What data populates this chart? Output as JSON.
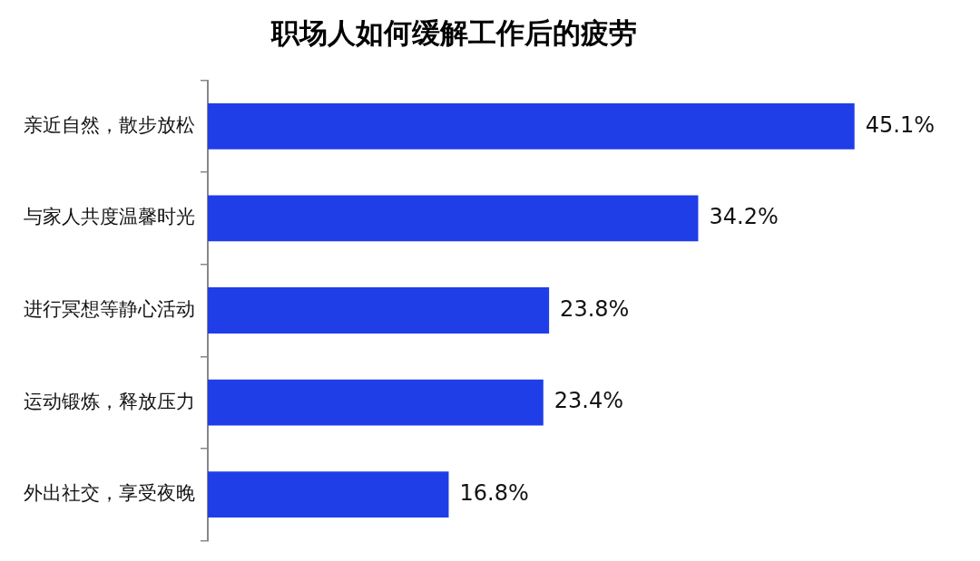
{
  "chart_data": {
    "type": "bar",
    "orientation": "horizontal",
    "title": "职场人如何缓解工作后的疲劳",
    "categories": [
      "亲近自然，散步放松",
      "与家人共度温馨时光",
      "进行冥想等静心活动",
      "运动锻炼，释放压力",
      "外出社交，享受夜晚"
    ],
    "values": [
      45.1,
      34.2,
      23.8,
      23.4,
      16.8
    ],
    "value_labels": [
      "45.1%",
      "34.2%",
      "23.8%",
      "23.4%",
      "16.8%"
    ],
    "color": "#1f3ee8",
    "grid": false,
    "legend": false,
    "tick_labels": "y"
  }
}
